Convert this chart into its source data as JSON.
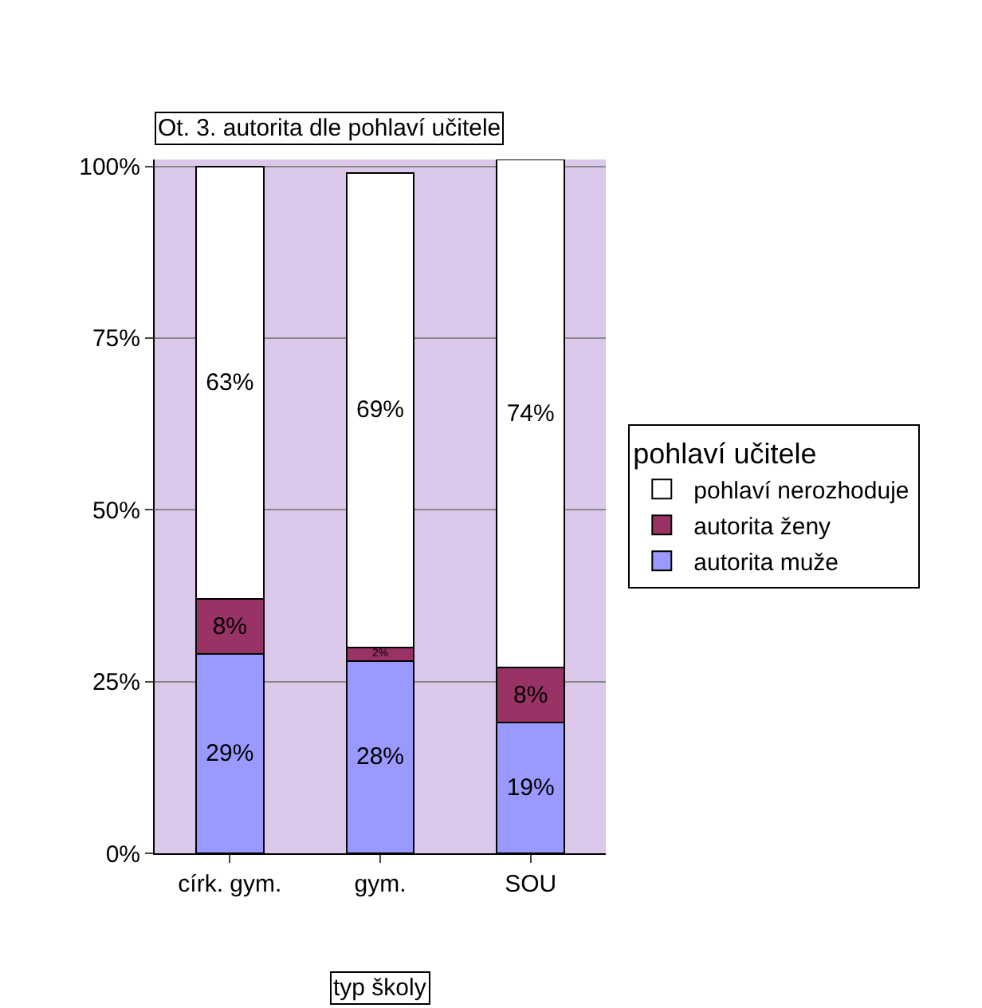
{
  "chart_data": {
    "type": "bar",
    "title": "Ot. 3. autorita dle pohlaví učitele",
    "xlabel": "typ školy",
    "legend_title": "pohlaví učitele",
    "categories": [
      "círk. gym.",
      "gym.",
      "SOU"
    ],
    "stacked": true,
    "series": [
      {
        "name": "autorita muže",
        "color": "#9999ff",
        "values": [
          29,
          28,
          19
        ],
        "value_labels": [
          "29%",
          "28%",
          "19%"
        ]
      },
      {
        "name": "autorita ženy",
        "color": "#993366",
        "values": [
          8,
          2,
          8
        ],
        "value_labels": [
          "8%",
          "2%",
          "8%"
        ]
      },
      {
        "name": "pohlaví nerozhoduje",
        "color": "#ffffff",
        "values": [
          63,
          69,
          74
        ],
        "value_labels": [
          "63%",
          "69%",
          "74%"
        ]
      }
    ],
    "ylim": [
      0,
      101
    ],
    "yticks": [
      {
        "value": 0,
        "label": "0%"
      },
      {
        "value": 25,
        "label": "25%"
      },
      {
        "value": 50,
        "label": "50%"
      },
      {
        "value": 75,
        "label": "75%"
      },
      {
        "value": 100,
        "label": "100%"
      }
    ],
    "grid": "y",
    "legend": "right"
  }
}
